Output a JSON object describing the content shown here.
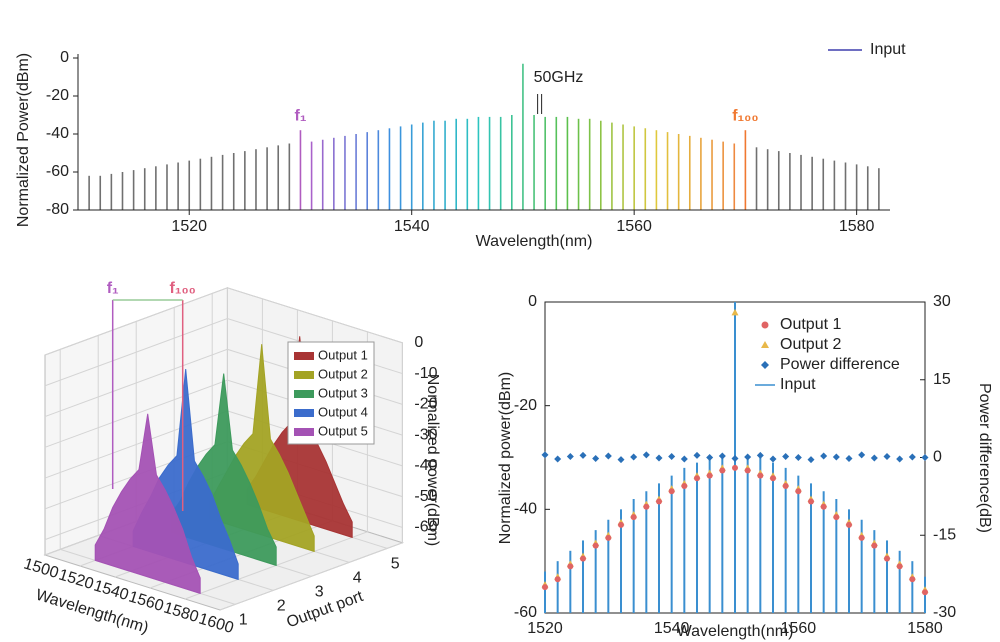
{
  "chart_data": [
    {
      "type": "stem",
      "ylabel": "Normalized Power(dBm)",
      "xlabel": "Wavelength(nm)",
      "xlim": [
        1510,
        1583
      ],
      "xticks": [
        1520,
        1540,
        1560,
        1580
      ],
      "ylim": [
        -80,
        0
      ],
      "yticks": [
        -80,
        -60,
        -40,
        -20,
        0
      ],
      "x": [
        1511,
        1512,
        1513,
        1514,
        1515,
        1516,
        1517,
        1518,
        1519,
        1520,
        1521,
        1522,
        1523,
        1524,
        1525,
        1526,
        1527,
        1528,
        1529,
        1530,
        1531,
        1532,
        1533,
        1534,
        1535,
        1536,
        1537,
        1538,
        1539,
        1540,
        1541,
        1542,
        1543,
        1544,
        1545,
        1546,
        1547,
        1548,
        1549,
        1550,
        1551,
        1552,
        1553,
        1554,
        1555,
        1556,
        1557,
        1558,
        1559,
        1560,
        1561,
        1562,
        1563,
        1564,
        1565,
        1566,
        1567,
        1568,
        1569,
        1570,
        1571,
        1572,
        1573,
        1574,
        1575,
        1576,
        1577,
        1578,
        1579,
        1580,
        1581,
        1582
      ],
      "series": [
        {
          "name": "Input",
          "color": "#3f3fae",
          "values": [
            -62,
            -62,
            -61,
            -60,
            -59,
            -58,
            -57,
            -56,
            -55,
            -54,
            -53,
            -52,
            -51,
            -50,
            -49,
            -48,
            -47,
            -46,
            -45,
            -38,
            -44,
            -43,
            -42,
            -41,
            -40,
            -39,
            -38,
            -37,
            -36,
            -35,
            -34,
            -33,
            -33,
            -32,
            -32,
            -31,
            -31,
            -31,
            -30,
            -3,
            -30,
            -31,
            -31,
            -31,
            -32,
            -32,
            -33,
            -34,
            -35,
            -36,
            -37,
            -38,
            -39,
            -40,
            -41,
            -42,
            -43,
            -44,
            -45,
            -38,
            -47,
            -48,
            -49,
            -50,
            -51,
            -52,
            -53,
            -54,
            -55,
            -56,
            -57,
            -58
          ]
        }
      ],
      "gray_color": "#707070",
      "band": [
        1530,
        1570
      ],
      "band_colors": [
        "#b85cc8",
        "#3d8fe0",
        "#2cc4c0",
        "#5cc04c",
        "#e0c83c",
        "#f08040"
      ],
      "annotations": [
        {
          "text": "f₁",
          "x": 1530,
          "color": "#b05cc0"
        },
        {
          "text": "f₁₀₀",
          "x": 1570,
          "color": "#f07830"
        },
        {
          "text": "50GHz",
          "x": 1551.5
        }
      ]
    },
    {
      "type": "waterfall3d",
      "xlabel": "Wavelength(nm)",
      "ylabel": "Output port",
      "zlabel": "Normalized power(dBm)",
      "xlim": [
        1500,
        1600
      ],
      "xticks": [
        1500,
        1520,
        1540,
        1560,
        1580,
        1600
      ],
      "ylim": [
        0.6,
        5.4
      ],
      "yticks": [
        1,
        2,
        3,
        4,
        5
      ],
      "zlim": [
        -65,
        0
      ],
      "zticks": [
        0,
        -10,
        -20,
        -30,
        -40,
        -50,
        -60
      ],
      "x": [
        1520,
        1525,
        1530,
        1535,
        1540,
        1545,
        1550,
        1555,
        1560,
        1565,
        1570,
        1575,
        1580
      ],
      "series": [
        {
          "name": "Output 1",
          "color": "#a83434",
          "port": 5,
          "values": [
            -60,
            -55,
            -49,
            -43,
            -38,
            -34,
            -5,
            -34,
            -38,
            -43,
            -49,
            -55,
            -60
          ]
        },
        {
          "name": "Output 2",
          "color": "#a3a324",
          "port": 4,
          "values": [
            -60,
            -54,
            -48,
            -42,
            -37,
            -33,
            -3,
            -33,
            -37,
            -42,
            -48,
            -54,
            -60
          ]
        },
        {
          "name": "Output 3",
          "color": "#3d9a5c",
          "port": 3,
          "values": [
            -59,
            -54,
            -47,
            -41,
            -36,
            -32,
            -8,
            -32,
            -36,
            -41,
            -47,
            -54,
            -59
          ]
        },
        {
          "name": "Output 4",
          "color": "#3b6ccc",
          "port": 2,
          "values": [
            -60,
            -53,
            -47,
            -40,
            -35,
            -31,
            -2,
            -31,
            -35,
            -40,
            -47,
            -53,
            -60
          ]
        },
        {
          "name": "Output 5",
          "color": "#a452b4",
          "port": 1,
          "values": [
            -60,
            -54,
            -46,
            -40,
            -35,
            -31,
            -12,
            -31,
            -35,
            -40,
            -46,
            -54,
            -60
          ]
        }
      ],
      "annotations": [
        {
          "text": "f₁",
          "x": 1530,
          "color": "#b05cc0"
        },
        {
          "text": "f₁₀₀",
          "x": 1570,
          "color": "#e06080"
        }
      ]
    },
    {
      "type": "combo",
      "xlabel": "Wavelength(nm)",
      "ylabel": "Normalized power(dBm)",
      "y2label": "Power difference(dB)",
      "xlim": [
        1520,
        1580
      ],
      "xticks": [
        1520,
        1540,
        1560,
        1580
      ],
      "ylim": [
        -60,
        0
      ],
      "yticks": [
        -60,
        -40,
        -20,
        0
      ],
      "y2lim": [
        -30,
        30
      ],
      "y2ticks": [
        -30,
        -15,
        0,
        15,
        30
      ],
      "x": [
        1520,
        1522,
        1524,
        1526,
        1528,
        1530,
        1532,
        1534,
        1536,
        1538,
        1540,
        1542,
        1544,
        1546,
        1548,
        1550,
        1552,
        1554,
        1556,
        1558,
        1560,
        1562,
        1564,
        1566,
        1568,
        1570,
        1572,
        1574,
        1576,
        1578,
        1580
      ],
      "series": [
        {
          "name": "Output 1",
          "color": "#e06464",
          "marker": "circle",
          "values": [
            -55,
            -53.5,
            -51,
            -49.5,
            -47,
            -45.5,
            -43,
            -41.5,
            -39.5,
            -38.5,
            -36.5,
            -35.5,
            -34,
            -33.5,
            -32.5,
            -32,
            -32.5,
            -33.5,
            -34,
            -35.5,
            -36.5,
            -38.5,
            -39.5,
            -41.5,
            -43,
            -45.5,
            -47,
            -49.5,
            -51,
            -53.5,
            -56
          ]
        },
        {
          "name": "Output 2",
          "color": "#e8b84a",
          "marker": "triangle",
          "values": [
            -54.5,
            -53,
            -50.5,
            -49,
            -46.5,
            -45,
            -42.5,
            -41,
            -39,
            -38,
            -36,
            -35,
            -33.5,
            -33,
            -32,
            -2,
            -32,
            -33,
            -33.5,
            -35,
            -36,
            -38,
            -39,
            -41,
            -42.5,
            -45,
            -46.5,
            -49,
            -50.5,
            -53,
            -55.5
          ]
        },
        {
          "name": "Power difference",
          "color": "#2a70b8",
          "marker": "diamond",
          "axis": "y2",
          "values": [
            0.5,
            -0.3,
            0.2,
            0.4,
            -0.2,
            0.3,
            -0.4,
            0.1,
            0.5,
            -0.1,
            0.2,
            -0.3,
            0.4,
            0,
            0.3,
            -0.2,
            0.1,
            0.4,
            -0.3,
            0.2,
            0,
            -0.4,
            0.3,
            0.1,
            -0.2,
            0.5,
            -0.1,
            0.2,
            -0.3,
            0.1,
            0
          ]
        },
        {
          "name": "Input",
          "color": "#3a8fd0",
          "marker": "stem",
          "values": [
            -52,
            -50,
            -48,
            -46,
            -44,
            -42,
            -40,
            -38,
            -36.5,
            -35,
            -33.5,
            -32,
            -31,
            -30,
            -29.5,
            0,
            -29.5,
            -30,
            -31,
            -32,
            -33.5,
            -35,
            -36.5,
            -38,
            -40,
            -42,
            -44,
            -46,
            -48,
            -50,
            -53
          ]
        }
      ]
    }
  ]
}
